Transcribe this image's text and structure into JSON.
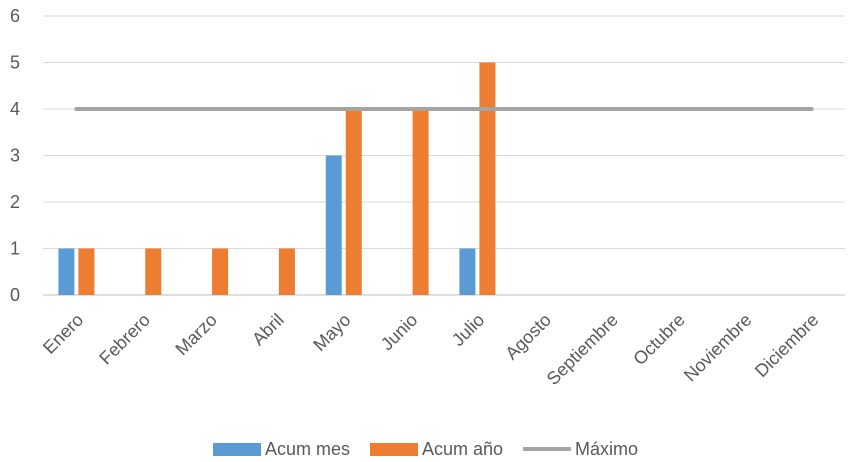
{
  "chart_data": {
    "type": "bar",
    "title": "",
    "xlabel": "",
    "ylabel": "",
    "categories": [
      "Enero",
      "Febrero",
      "Marzo",
      "Abril",
      "Mayo",
      "Junio",
      "Julio",
      "Agosto",
      "Septiembre",
      "Octubre",
      "Noviembre",
      "Diciembre"
    ],
    "ylim": [
      0,
      6
    ],
    "yticks": [
      0,
      1,
      2,
      3,
      4,
      5,
      6
    ],
    "grid": true,
    "legend_position": "bottom",
    "series": [
      {
        "name": "Acum mes",
        "type": "bar",
        "color": "#5B9BD5",
        "values": [
          1,
          0,
          0,
          0,
          3,
          0,
          1,
          0,
          0,
          0,
          0,
          0
        ]
      },
      {
        "name": "Acum año",
        "type": "bar",
        "color": "#ED7D31",
        "values": [
          1,
          1,
          1,
          1,
          4,
          4,
          5,
          null,
          null,
          null,
          null,
          null
        ]
      },
      {
        "name": "Máximo",
        "type": "line",
        "color": "#A5A5A5",
        "values": [
          4,
          4,
          4,
          4,
          4,
          4,
          4,
          4,
          4,
          4,
          4,
          4
        ]
      }
    ]
  },
  "legend": {
    "items": [
      {
        "label": "Acum mes",
        "color": "#5B9BD5",
        "kind": "box"
      },
      {
        "label": "Acum año",
        "color": "#ED7D31",
        "kind": "box"
      },
      {
        "label": "Máximo",
        "color": "#A5A5A5",
        "kind": "line"
      }
    ]
  }
}
